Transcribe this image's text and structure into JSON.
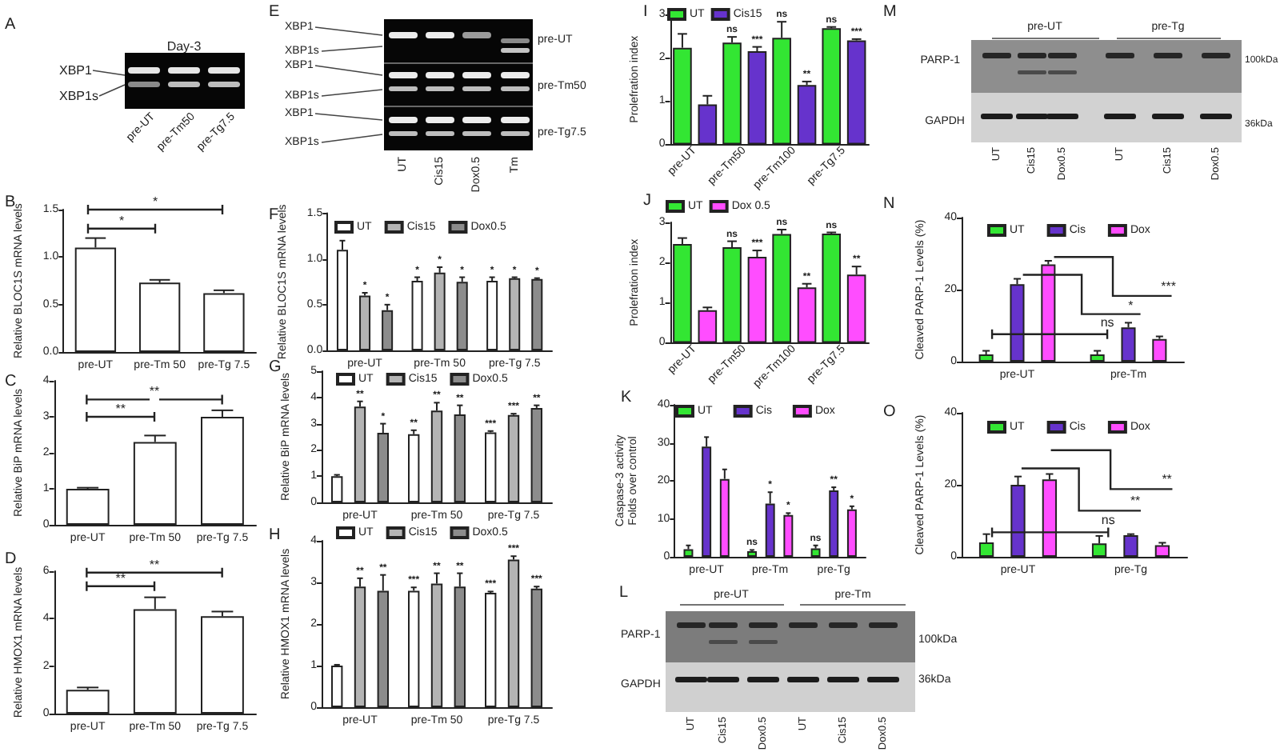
{
  "chart_data": [
    {
      "type": "other",
      "title": "A",
      "annotations": [
        "Day-3",
        "XBP1",
        "XBP1s",
        "pre-UT",
        "pre-Tm50",
        "pre-Tg7.5"
      ]
    },
    {
      "type": "bar",
      "title": "B",
      "ylabel": "Relative BLOC1S mRNA levels",
      "categories": [
        "pre-UT",
        "pre-Tm 50",
        "pre-Tg 7.5"
      ],
      "values": [
        1.1,
        0.73,
        0.62
      ],
      "color": "#ffffff",
      "errors": [
        [
          1.1,
          1.2
        ],
        [
          0.73,
          0.76
        ],
        [
          0.62,
          0.65
        ]
      ],
      "ylim": [
        0,
        1.5
      ],
      "yticks": [
        {
          "value": 0,
          "label": "0.0"
        },
        {
          "value": 0.5,
          "label": "0.5"
        },
        {
          "value": 1,
          "label": "1.0"
        },
        {
          "value": 1.5,
          "label": "1.5"
        }
      ],
      "annotations": [
        "*",
        "*"
      ]
    },
    {
      "type": "bar",
      "title": "C",
      "ylabel": "Relative BiP mRNA levels",
      "categories": [
        "pre-UT",
        "pre-Tm 50",
        "pre-Tg 7.5"
      ],
      "values": [
        1.0,
        2.3,
        3.0
      ],
      "color": "#ffffff",
      "errors": [
        [
          1.0,
          1.03
        ],
        [
          2.3,
          2.48
        ],
        [
          3.0,
          3.18
        ]
      ],
      "ylim": [
        0,
        4
      ],
      "yticks": [
        0,
        1,
        2,
        3,
        4
      ],
      "annotations": [
        "**",
        "**"
      ]
    },
    {
      "type": "bar",
      "title": "D",
      "ylabel": "Relative HMOX1 mRNA levels",
      "categories": [
        "pre-UT",
        "pre-Tm 50",
        "pre-Tg 7.5"
      ],
      "values": [
        1.0,
        4.4,
        4.1
      ],
      "color": "#ffffff",
      "errors": [
        [
          1.0,
          1.1
        ],
        [
          4.4,
          4.9
        ],
        [
          4.1,
          4.3
        ]
      ],
      "ylim": [
        0,
        6
      ],
      "yticks": [
        0,
        2,
        4,
        6
      ],
      "annotations": [
        "**",
        "**"
      ]
    },
    {
      "type": "other",
      "title": "E",
      "annotations": [
        "XBP1",
        "XBP1s",
        "XBP1",
        "XBP1s",
        "XBP1",
        "XBP1s",
        "pre-UT",
        "pre-Tm50",
        "pre-Tg7.5",
        "UT",
        "Cis15",
        "Dox0.5",
        "Tm"
      ]
    },
    {
      "type": "bar",
      "title": "F",
      "ylabel": "Relative BLOC1S mRNA levels",
      "categories": [
        "pre-UT",
        "pre-Tm 50",
        "pre-Tg 7.5"
      ],
      "ylim": [
        0,
        1.5
      ],
      "yticks": [
        {
          "value": 0,
          "label": "0.0"
        },
        {
          "value": 0.5,
          "label": "0.5"
        },
        {
          "value": 1,
          "label": "1.0"
        },
        {
          "value": 1.5,
          "label": "1.5"
        }
      ],
      "legend": "top left",
      "series": [
        {
          "name": "UT",
          "color": "#ffffff",
          "values": [
            1.1,
            0.76,
            0.76
          ],
          "errors": [
            [
              1.1,
              1.2
            ],
            [
              0.76,
              0.8
            ],
            [
              0.76,
              0.8
            ]
          ],
          "value_labels": [
            null,
            "*",
            "*"
          ]
        },
        {
          "name": "Cis15",
          "color": "#b4b4b4",
          "values": [
            0.6,
            0.85,
            0.79
          ],
          "errors": [
            [
              0.6,
              0.63
            ],
            [
              0.85,
              0.91
            ],
            [
              0.79,
              0.8
            ]
          ],
          "value_labels": [
            "*",
            "*",
            "*"
          ]
        },
        {
          "name": "Dox0.5",
          "color": "#8c8c8c",
          "values": [
            0.44,
            0.75,
            0.78
          ],
          "errors": [
            [
              0.44,
              0.5
            ],
            [
              0.75,
              0.8
            ],
            [
              0.78,
              0.79
            ]
          ],
          "value_labels": [
            "*",
            "*",
            "*"
          ]
        }
      ]
    },
    {
      "type": "bar",
      "title": "G",
      "ylabel": "Relative BiP mRNA levels",
      "categories": [
        "pre-UT",
        "pre-Tm 50",
        "pre-Tg 7.5"
      ],
      "ylim": [
        0,
        5
      ],
      "yticks": [
        0,
        1,
        2,
        3,
        4,
        5
      ],
      "legend": "top left",
      "series": [
        {
          "name": "UT",
          "color": "#ffffff",
          "values": [
            1.0,
            2.6,
            2.67
          ],
          "errors": [
            [
              1.0,
              1.05
            ],
            [
              2.6,
              2.75
            ],
            [
              2.67,
              2.72
            ]
          ],
          "value_labels": [
            null,
            "**",
            "***"
          ]
        },
        {
          "name": "Cis15",
          "color": "#b4b4b4",
          "values": [
            3.65,
            3.5,
            3.33
          ],
          "errors": [
            [
              3.65,
              3.85
            ],
            [
              3.5,
              3.8
            ],
            [
              3.33,
              3.38
            ]
          ],
          "value_labels": [
            "**",
            "**",
            "***"
          ]
        },
        {
          "name": "Dox0.5",
          "color": "#8c8c8c",
          "values": [
            2.65,
            3.35,
            3.6
          ],
          "errors": [
            [
              2.65,
              3.0
            ],
            [
              3.35,
              3.7
            ],
            [
              3.6,
              3.7
            ]
          ],
          "value_labels": [
            "*",
            "**",
            "**"
          ]
        }
      ]
    },
    {
      "type": "bar",
      "title": "H",
      "ylabel": "Relative HMOX1 mRNA levels",
      "categories": [
        "pre-UT",
        "pre-Tm 50",
        "pre-Tg 7.5"
      ],
      "ylim": [
        0,
        4
      ],
      "yticks": [
        0,
        1,
        2,
        3,
        4
      ],
      "legend": "top left",
      "series": [
        {
          "name": "UT",
          "color": "#ffffff",
          "values": [
            1.0,
            2.8,
            2.75
          ],
          "errors": [
            [
              1.0,
              1.02
            ],
            [
              2.8,
              2.88
            ],
            [
              2.75,
              2.78
            ]
          ],
          "value_labels": [
            null,
            "***",
            "***"
          ]
        },
        {
          "name": "Cis15",
          "color": "#b4b4b4",
          "values": [
            2.9,
            2.97,
            3.55
          ],
          "errors": [
            [
              2.9,
              3.1
            ],
            [
              2.97,
              3.22
            ],
            [
              3.55,
              3.63
            ]
          ],
          "value_labels": [
            "**",
            "**",
            "***"
          ]
        },
        {
          "name": "Dox0.5",
          "color": "#8c8c8c",
          "values": [
            2.8,
            2.9,
            2.85
          ],
          "errors": [
            [
              2.8,
              3.18
            ],
            [
              2.9,
              3.22
            ],
            [
              2.85,
              2.9
            ]
          ],
          "value_labels": [
            "**",
            "**",
            "***"
          ]
        }
      ]
    },
    {
      "type": "bar",
      "title": "I",
      "ylabel": "Prolefration index",
      "categories": [
        "pre-UT",
        "pre-Tm50",
        "pre-Tm100",
        "pre-Tg7.5"
      ],
      "ylim": [
        0,
        3
      ],
      "yticks": [
        0,
        1,
        2,
        3
      ],
      "legend": "top left",
      "series": [
        {
          "name": "UT",
          "color": "#33e633",
          "values": [
            2.23,
            2.35,
            2.46,
            2.68
          ],
          "errors": [
            [
              2.23,
              2.55
            ],
            [
              2.35,
              2.48
            ],
            [
              2.46,
              2.83
            ],
            [
              2.68,
              2.71
            ]
          ],
          "value_labels": [
            null,
            "ns",
            "ns",
            "ns"
          ]
        },
        {
          "name": "Cis15",
          "color": "#6633cc",
          "values": [
            0.92,
            2.15,
            1.37,
            2.4
          ],
          "errors": [
            [
              0.92,
              1.12
            ],
            [
              2.15,
              2.25
            ],
            [
              1.37,
              1.45
            ],
            [
              2.4,
              2.43
            ]
          ],
          "value_labels": [
            null,
            "***",
            "**",
            "***"
          ]
        }
      ]
    },
    {
      "type": "bar",
      "title": "J",
      "ylabel": "Prolefration index",
      "categories": [
        "pre-UT",
        "pre-Tm50",
        "pre-Tm100",
        "pre-Tg7.5"
      ],
      "ylim": [
        0,
        3
      ],
      "yticks": [
        0,
        1,
        2,
        3
      ],
      "legend": "top left",
      "series": [
        {
          "name": "UT",
          "color": "#33e633",
          "values": [
            2.46,
            2.38,
            2.71,
            2.72
          ],
          "errors": [
            [
              2.46,
              2.61
            ],
            [
              2.38,
              2.53
            ],
            [
              2.71,
              2.82
            ],
            [
              2.72,
              2.75
            ]
          ],
          "value_labels": [
            null,
            "ns",
            "ns",
            "ns"
          ]
        },
        {
          "name": "Dox 0.5",
          "color": "#ff4dff",
          "values": [
            0.81,
            2.14,
            1.38,
            1.7
          ],
          "errors": [
            [
              0.81,
              0.88
            ],
            [
              2.14,
              2.3
            ],
            [
              1.38,
              1.47
            ],
            [
              1.7,
              1.9
            ]
          ],
          "value_labels": [
            null,
            "***",
            "**",
            "**"
          ]
        }
      ]
    },
    {
      "type": "bar",
      "title": "K",
      "ylabel": "Caspase-3 activity\nFolds over control",
      "categories": [
        "pre-UT",
        "pre-Tm",
        "pre-Tg"
      ],
      "ylim": [
        0,
        40
      ],
      "yticks": [
        0,
        10,
        20,
        30,
        40
      ],
      "legend": "top left",
      "series": [
        {
          "name": "UT",
          "color": "#33e633",
          "values": [
            2,
            1.5,
            2.2
          ],
          "errors": [
            [
              2,
              3
            ],
            [
              1.5,
              1.8
            ],
            [
              2.2,
              3
            ]
          ],
          "value_labels": [
            null,
            "ns",
            "ns"
          ]
        },
        {
          "name": "Cis",
          "color": "#6633cc",
          "values": [
            29,
            14,
            17.5
          ],
          "errors": [
            [
              29,
              31.5
            ],
            [
              14,
              17
            ],
            [
              17.5,
              18.3
            ]
          ],
          "value_labels": [
            null,
            "*",
            "**"
          ]
        },
        {
          "name": "Dox",
          "color": "#ff4dff",
          "values": [
            20.5,
            11,
            12.5
          ],
          "errors": [
            [
              20.5,
              23
            ],
            [
              11,
              11.5
            ],
            [
              12.5,
              13.3
            ]
          ],
          "value_labels": [
            null,
            "*",
            "*"
          ]
        }
      ]
    },
    {
      "type": "other",
      "title": "L",
      "annotations": [
        "pre-UT",
        "pre-Tm",
        "PARP-1",
        "GAPDH",
        "100kDa",
        "36kDa",
        "UT",
        "Cis15",
        "Dox0.5",
        "UT",
        "Cis15",
        "Dox0.5"
      ]
    },
    {
      "type": "other",
      "title": "M",
      "annotations": [
        "pre-UT",
        "pre-Tg",
        "PARP-1",
        "GAPDH",
        "100kDa",
        "36kDa",
        "UT",
        "Cis15",
        "Dox0.5",
        "UT",
        "Cis15",
        "Dox0.5"
      ]
    },
    {
      "type": "bar",
      "title": "N",
      "ylabel": "Cleaved PARP-1 Levels (%)",
      "categories": [
        "pre-UT",
        "pre-Tm"
      ],
      "ylim": [
        0,
        40
      ],
      "yticks": [
        0,
        20,
        40
      ],
      "legend": "top left",
      "annotations": [
        "ns",
        "*",
        "***"
      ],
      "series": [
        {
          "name": "UT",
          "color": "#33e633",
          "values": [
            2,
            2
          ],
          "errors": [
            [
              2,
              3
            ],
            [
              2,
              3
            ]
          ]
        },
        {
          "name": "Cis",
          "color": "#6633cc",
          "values": [
            21.5,
            9.5
          ],
          "errors": [
            [
              21.5,
              23
            ],
            [
              9.5,
              10.8
            ]
          ]
        },
        {
          "name": "Dox",
          "color": "#ff4dff",
          "values": [
            27,
            6.3
          ],
          "errors": [
            [
              27,
              28
            ],
            [
              6.3,
              7
            ]
          ]
        }
      ]
    },
    {
      "type": "bar",
      "title": "O",
      "ylabel": "Cleaved PARP-1 Levels (%)",
      "categories": [
        "pre-UT",
        "pre-Tg"
      ],
      "ylim": [
        0,
        40
      ],
      "yticks": [
        0,
        20,
        40
      ],
      "legend": "top left",
      "annotations": [
        "ns",
        "**",
        "**"
      ],
      "series": [
        {
          "name": "UT",
          "color": "#33e633",
          "values": [
            4,
            3.7
          ],
          "errors": [
            [
              4,
              6.3
            ],
            [
              3.7,
              5.8
            ]
          ]
        },
        {
          "name": "Cis",
          "color": "#6633cc",
          "values": [
            20,
            6
          ],
          "errors": [
            [
              20,
              22.3
            ],
            [
              6,
              6.3
            ]
          ]
        },
        {
          "name": "Dox",
          "color": "#ff4dff",
          "values": [
            21.5,
            3.2
          ],
          "errors": [
            [
              21.5,
              23
            ],
            [
              3.2,
              3.9
            ]
          ]
        }
      ]
    }
  ]
}
